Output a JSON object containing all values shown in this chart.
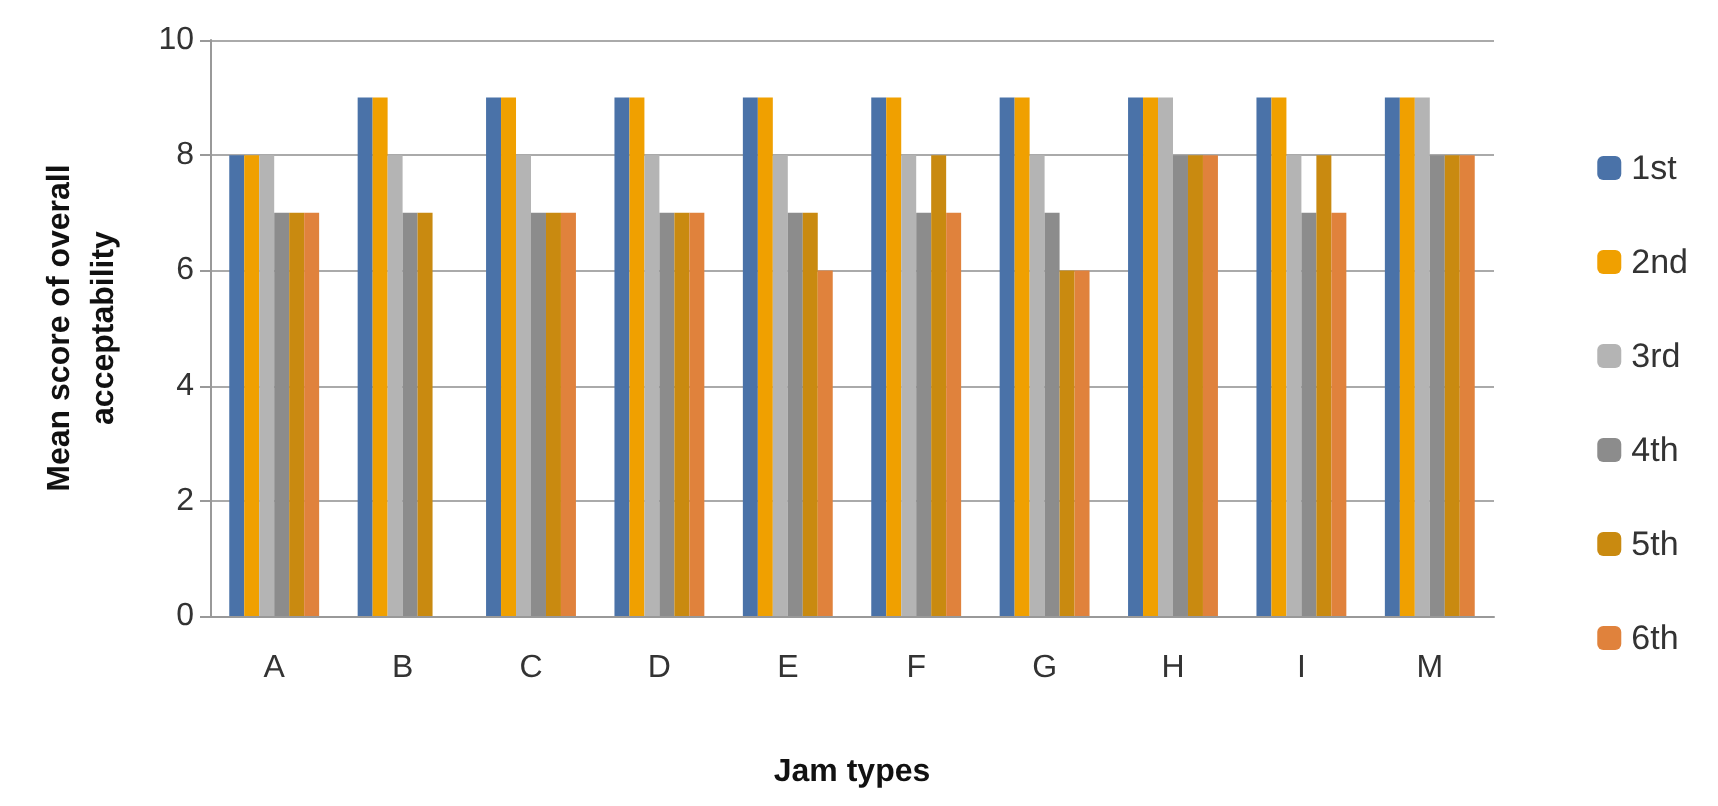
{
  "chart_data": {
    "type": "bar",
    "xlabel": "Jam types",
    "ylabel": "Mean score of overall\nacceptability",
    "categories": [
      "A",
      "B",
      "C",
      "D",
      "E",
      "F",
      "G",
      "H",
      "I",
      "M"
    ],
    "series": [
      {
        "name": "1st",
        "color": "#4a72a8",
        "values": [
          8,
          9,
          9,
          9,
          9,
          9,
          9,
          9,
          9,
          9
        ]
      },
      {
        "name": "2nd",
        "color": "#f0a000",
        "values": [
          8,
          9,
          9,
          9,
          9,
          9,
          9,
          9,
          9,
          9
        ]
      },
      {
        "name": "3rd",
        "color": "#b4b4b4",
        "values": [
          8,
          8,
          8,
          8,
          8,
          8,
          8,
          9,
          8,
          9
        ]
      },
      {
        "name": "4th",
        "color": "#8c8c8c",
        "values": [
          7,
          7,
          7,
          7,
          7,
          7,
          7,
          8,
          7,
          8
        ]
      },
      {
        "name": "5th",
        "color": "#c98a10",
        "values": [
          7,
          7,
          7,
          7,
          7,
          8,
          6,
          8,
          8,
          8
        ]
      },
      {
        "name": "6th",
        "color": "#e0823c",
        "values": [
          7,
          null,
          7,
          7,
          6,
          7,
          6,
          8,
          7,
          8
        ]
      }
    ],
    "ylim": [
      0,
      10
    ],
    "yticks": [
      0,
      2,
      4,
      6,
      8,
      10
    ],
    "grid": "y",
    "legend": "right"
  }
}
